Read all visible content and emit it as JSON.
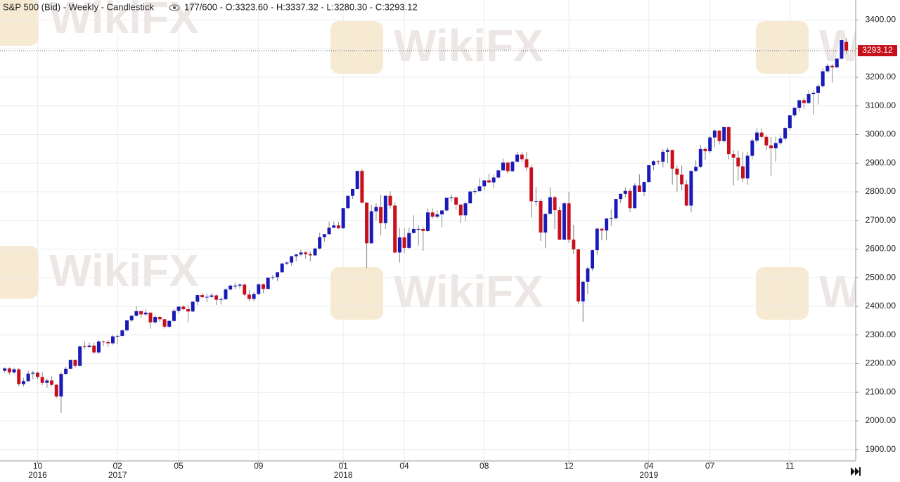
{
  "chart_data": {
    "type": "candlestick",
    "title": "S&P 500 (Bid) - Weekly - Candlestick",
    "info": "177/600 - O:3323.60 - H:3337.32 - L:3280.30 - C:3293.12",
    "watermark": "WikiFX",
    "up_color": "#1a1ab8",
    "down_color": "#c8101c",
    "grid": true,
    "ylim": [
      1860,
      3470
    ],
    "yticks": [
      {
        "value": 1900,
        "label": "1900.00"
      },
      {
        "value": 2000,
        "label": "2000.00"
      },
      {
        "value": 2100,
        "label": "2100.00"
      },
      {
        "value": 2200,
        "label": "2200.00"
      },
      {
        "value": 2300,
        "label": "2300.00"
      },
      {
        "value": 2400,
        "label": "2400.00"
      },
      {
        "value": 2500,
        "label": "2500.00"
      },
      {
        "value": 2600,
        "label": "2600.00"
      },
      {
        "value": 2700,
        "label": "2700.00"
      },
      {
        "value": 2800,
        "label": "2800.00"
      },
      {
        "value": 2900,
        "label": "2900.00"
      },
      {
        "value": 3000,
        "label": "3000.00"
      },
      {
        "value": 3100,
        "label": "3100.00"
      },
      {
        "value": 3200,
        "label": "3200.00"
      },
      {
        "value": 3300,
        "label": "3300.00"
      },
      {
        "value": 3400,
        "label": "3400.00"
      }
    ],
    "xlim": [
      -1,
      181
    ],
    "xticks": [
      {
        "value": 7,
        "label": "10"
      },
      {
        "value": 24,
        "label": "02"
      },
      {
        "value": 37,
        "label": "05"
      },
      {
        "value": 54,
        "label": "09"
      },
      {
        "value": 72,
        "label": "01"
      },
      {
        "value": 85,
        "label": "04"
      },
      {
        "value": 102,
        "label": "08"
      },
      {
        "value": 120,
        "label": "12"
      },
      {
        "value": 137,
        "label": "04"
      },
      {
        "value": 150,
        "label": "07"
      },
      {
        "value": 167,
        "label": "11"
      }
    ],
    "years": [
      {
        "value": 7,
        "label": "2016"
      },
      {
        "value": 24,
        "label": "2017"
      },
      {
        "value": 72,
        "label": "2018"
      },
      {
        "value": 137,
        "label": "2019"
      }
    ],
    "last_price": {
      "value": 3293.12,
      "label": "3293.12"
    },
    "candles": [
      [
        2175,
        2187,
        2168,
        2183
      ],
      [
        2183,
        2187,
        2160,
        2169
      ],
      [
        2169,
        2185,
        2165,
        2180
      ],
      [
        2180,
        2184,
        2120,
        2128
      ],
      [
        2128,
        2150,
        2119,
        2139
      ],
      [
        2139,
        2175,
        2135,
        2165
      ],
      [
        2165,
        2175,
        2145,
        2168
      ],
      [
        2168,
        2172,
        2145,
        2153
      ],
      [
        2153,
        2170,
        2125,
        2133
      ],
      [
        2133,
        2148,
        2115,
        2141
      ],
      [
        2141,
        2156,
        2120,
        2126
      ],
      [
        2126,
        2130,
        2080,
        2085
      ],
      [
        2085,
        2170,
        2028,
        2164
      ],
      [
        2164,
        2190,
        2160,
        2182
      ],
      [
        2182,
        2214,
        2180,
        2213
      ],
      [
        2213,
        2214,
        2185,
        2192
      ],
      [
        2192,
        2262,
        2190,
        2260
      ],
      [
        2260,
        2278,
        2250,
        2258
      ],
      [
        2258,
        2274,
        2254,
        2263
      ],
      [
        2263,
        2273,
        2234,
        2239
      ],
      [
        2239,
        2282,
        2234,
        2277
      ],
      [
        2277,
        2280,
        2262,
        2275
      ],
      [
        2275,
        2282,
        2258,
        2271
      ],
      [
        2271,
        2300,
        2266,
        2295
      ],
      [
        2295,
        2300,
        2268,
        2297
      ],
      [
        2297,
        2319,
        2294,
        2316
      ],
      [
        2316,
        2352,
        2312,
        2351
      ],
      [
        2351,
        2368,
        2345,
        2367
      ],
      [
        2367,
        2401,
        2364,
        2383
      ],
      [
        2383,
        2385,
        2360,
        2372
      ],
      [
        2372,
        2390,
        2366,
        2378
      ],
      [
        2378,
        2380,
        2322,
        2344
      ],
      [
        2344,
        2370,
        2340,
        2363
      ],
      [
        2363,
        2368,
        2346,
        2355
      ],
      [
        2355,
        2356,
        2322,
        2329
      ],
      [
        2329,
        2352,
        2323,
        2349
      ],
      [
        2349,
        2392,
        2346,
        2384
      ],
      [
        2384,
        2400,
        2377,
        2399
      ],
      [
        2399,
        2404,
        2385,
        2390
      ],
      [
        2390,
        2405,
        2345,
        2382
      ],
      [
        2382,
        2418,
        2380,
        2416
      ],
      [
        2416,
        2441,
        2404,
        2439
      ],
      [
        2439,
        2447,
        2428,
        2432
      ],
      [
        2432,
        2442,
        2414,
        2433
      ],
      [
        2433,
        2446,
        2430,
        2438
      ],
      [
        2438,
        2441,
        2405,
        2423
      ],
      [
        2423,
        2432,
        2407,
        2425
      ],
      [
        2425,
        2463,
        2422,
        2459
      ],
      [
        2459,
        2477,
        2456,
        2472
      ],
      [
        2472,
        2484,
        2460,
        2472
      ],
      [
        2472,
        2480,
        2462,
        2476
      ],
      [
        2476,
        2480,
        2437,
        2441
      ],
      [
        2441,
        2457,
        2417,
        2426
      ],
      [
        2426,
        2449,
        2418,
        2443
      ],
      [
        2443,
        2480,
        2440,
        2477
      ],
      [
        2477,
        2480,
        2446,
        2461
      ],
      [
        2461,
        2501,
        2459,
        2500
      ],
      [
        2500,
        2509,
        2493,
        2502
      ],
      [
        2502,
        2521,
        2488,
        2519
      ],
      [
        2519,
        2552,
        2518,
        2549
      ],
      [
        2549,
        2557,
        2545,
        2553
      ],
      [
        2553,
        2576,
        2541,
        2575
      ],
      [
        2575,
        2583,
        2557,
        2581
      ],
      [
        2581,
        2597,
        2574,
        2588
      ],
      [
        2588,
        2592,
        2566,
        2582
      ],
      [
        2582,
        2591,
        2557,
        2578
      ],
      [
        2578,
        2605,
        2575,
        2602
      ],
      [
        2602,
        2658,
        2598,
        2642
      ],
      [
        2642,
        2652,
        2625,
        2652
      ],
      [
        2652,
        2695,
        2650,
        2675
      ],
      [
        2675,
        2695,
        2673,
        2683
      ],
      [
        2683,
        2695,
        2670,
        2673
      ],
      [
        2673,
        2743,
        2670,
        2743
      ],
      [
        2743,
        2787,
        2740,
        2786
      ],
      [
        2786,
        2810,
        2775,
        2810
      ],
      [
        2810,
        2873,
        2808,
        2873
      ],
      [
        2873,
        2879,
        2759,
        2762
      ],
      [
        2762,
        2763,
        2533,
        2620
      ],
      [
        2620,
        2754,
        2620,
        2732
      ],
      [
        2732,
        2760,
        2700,
        2747
      ],
      [
        2747,
        2790,
        2648,
        2691
      ],
      [
        2691,
        2788,
        2670,
        2786
      ],
      [
        2786,
        2802,
        2741,
        2752
      ],
      [
        2752,
        2762,
        2585,
        2588
      ],
      [
        2588,
        2674,
        2553,
        2641
      ],
      [
        2641,
        2672,
        2586,
        2604
      ],
      [
        2604,
        2675,
        2600,
        2656
      ],
      [
        2656,
        2718,
        2655,
        2670
      ],
      [
        2670,
        2683,
        2612,
        2670
      ],
      [
        2670,
        2676,
        2594,
        2663
      ],
      [
        2663,
        2742,
        2660,
        2728
      ],
      [
        2728,
        2742,
        2707,
        2713
      ],
      [
        2713,
        2735,
        2707,
        2721
      ],
      [
        2721,
        2736,
        2676,
        2735
      ],
      [
        2735,
        2779,
        2731,
        2779
      ],
      [
        2779,
        2790,
        2765,
        2780
      ],
      [
        2780,
        2784,
        2737,
        2755
      ],
      [
        2755,
        2756,
        2692,
        2718
      ],
      [
        2718,
        2765,
        2698,
        2760
      ],
      [
        2760,
        2804,
        2759,
        2801
      ],
      [
        2801,
        2814,
        2791,
        2802
      ],
      [
        2802,
        2848,
        2802,
        2819
      ],
      [
        2819,
        2841,
        2804,
        2840
      ],
      [
        2840,
        2863,
        2831,
        2833
      ],
      [
        2833,
        2860,
        2813,
        2850
      ],
      [
        2850,
        2877,
        2848,
        2875
      ],
      [
        2875,
        2916,
        2874,
        2902
      ],
      [
        2902,
        2903,
        2864,
        2872
      ],
      [
        2872,
        2908,
        2870,
        2905
      ],
      [
        2905,
        2940,
        2904,
        2930
      ],
      [
        2930,
        2939,
        2904,
        2914
      ],
      [
        2914,
        2940,
        2874,
        2885
      ],
      [
        2885,
        2894,
        2710,
        2767
      ],
      [
        2767,
        2817,
        2750,
        2768
      ],
      [
        2768,
        2775,
        2628,
        2658
      ],
      [
        2658,
        2723,
        2604,
        2723
      ],
      [
        2723,
        2815,
        2722,
        2781
      ],
      [
        2781,
        2786,
        2670,
        2736
      ],
      [
        2736,
        2747,
        2631,
        2633
      ],
      [
        2633,
        2763,
        2631,
        2760
      ],
      [
        2760,
        2800,
        2621,
        2633
      ],
      [
        2633,
        2685,
        2583,
        2599
      ],
      [
        2599,
        2601,
        2409,
        2417
      ],
      [
        2417,
        2489,
        2346,
        2486
      ],
      [
        2486,
        2538,
        2443,
        2532
      ],
      [
        2532,
        2598,
        2524,
        2596
      ],
      [
        2596,
        2675,
        2580,
        2671
      ],
      [
        2671,
        2674,
        2631,
        2665
      ],
      [
        2665,
        2708,
        2631,
        2707
      ],
      [
        2707,
        2738,
        2681,
        2708
      ],
      [
        2708,
        2775,
        2703,
        2775
      ],
      [
        2775,
        2794,
        2761,
        2793
      ],
      [
        2793,
        2816,
        2780,
        2803
      ],
      [
        2803,
        2812,
        2729,
        2743
      ],
      [
        2743,
        2830,
        2741,
        2822
      ],
      [
        2822,
        2861,
        2800,
        2800
      ],
      [
        2800,
        2836,
        2785,
        2834
      ],
      [
        2834,
        2893,
        2834,
        2893
      ],
      [
        2893,
        2911,
        2875,
        2907
      ],
      [
        2907,
        2910,
        2895,
        2905
      ],
      [
        2905,
        2949,
        2885,
        2940
      ],
      [
        2940,
        2954,
        2900,
        2946
      ],
      [
        2946,
        2946,
        2825,
        2881
      ],
      [
        2881,
        2892,
        2801,
        2860
      ],
      [
        2860,
        2892,
        2805,
        2826
      ],
      [
        2826,
        2841,
        2750,
        2752
      ],
      [
        2752,
        2874,
        2728,
        2873
      ],
      [
        2873,
        2910,
        2868,
        2887
      ],
      [
        2887,
        2964,
        2883,
        2950
      ],
      [
        2950,
        2956,
        2912,
        2942
      ],
      [
        2942,
        2996,
        2935,
        2990
      ],
      [
        2990,
        3018,
        2957,
        3014
      ],
      [
        3014,
        3015,
        2966,
        2977
      ],
      [
        2977,
        3028,
        2972,
        3026
      ],
      [
        3026,
        3028,
        2914,
        2932
      ],
      [
        2932,
        2945,
        2822,
        2919
      ],
      [
        2919,
        2943,
        2840,
        2889
      ],
      [
        2889,
        2939,
        2834,
        2847
      ],
      [
        2847,
        2940,
        2825,
        2926
      ],
      [
        2926,
        2985,
        2914,
        2979
      ],
      [
        2979,
        3022,
        2970,
        3007
      ],
      [
        3007,
        3021,
        2984,
        2992
      ],
      [
        2992,
        2999,
        2945,
        2962
      ],
      [
        2962,
        2992,
        2856,
        2952
      ],
      [
        2952,
        2993,
        2906,
        2970
      ],
      [
        2970,
        2998,
        2965,
        2986
      ],
      [
        2986,
        3027,
        2980,
        3023
      ],
      [
        3023,
        3067,
        3015,
        3067
      ],
      [
        3067,
        3097,
        3060,
        3093
      ],
      [
        3093,
        3120,
        3081,
        3120
      ],
      [
        3120,
        3127,
        3090,
        3110
      ],
      [
        3110,
        3154,
        3107,
        3141
      ],
      [
        3141,
        3156,
        3070,
        3146
      ],
      [
        3146,
        3176,
        3105,
        3169
      ],
      [
        3169,
        3231,
        3165,
        3221
      ],
      [
        3221,
        3248,
        3216,
        3240
      ],
      [
        3240,
        3246,
        3181,
        3235
      ],
      [
        3235,
        3268,
        3231,
        3265
      ],
      [
        3265,
        3330,
        3262,
        3330
      ],
      [
        3323.6,
        3337.32,
        3280.3,
        3293.12
      ]
    ]
  }
}
